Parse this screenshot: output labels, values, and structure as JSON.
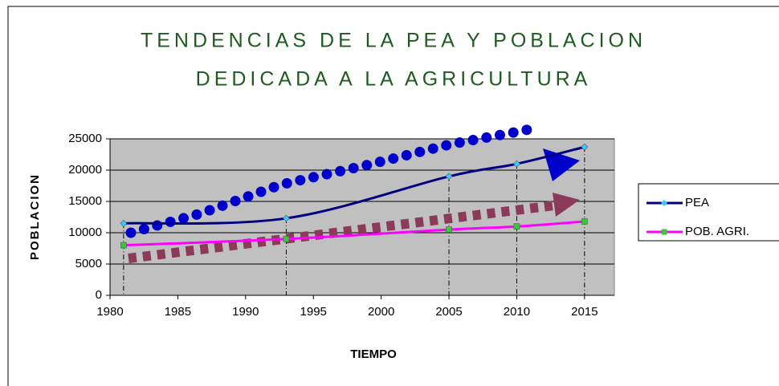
{
  "chart_data": {
    "type": "line",
    "title_lines": [
      "TENDENCIAS DE LA PEA Y POBLACION",
      "DEDICADA A LA AGRICULTURA"
    ],
    "x_label": "TIEMPO",
    "y_label": "POBLACION",
    "x": [
      1981,
      1993,
      2005,
      2010,
      2015
    ],
    "series": [
      {
        "name": "PEA",
        "color": "#000080",
        "marker_color": "#33ccff",
        "values": [
          11500,
          12300,
          19000,
          21000,
          23700
        ]
      },
      {
        "name": "POB. AGRI.",
        "color": "#ff00ff",
        "marker_color": "#33cc33",
        "values": [
          8000,
          9000,
          10500,
          11000,
          11800
        ]
      }
    ],
    "xlim": [
      1980,
      2017.2
    ],
    "xticks": [
      1980,
      1985,
      1990,
      1995,
      2000,
      2005,
      2010,
      2015
    ],
    "ylim": [
      0,
      25000
    ],
    "yticks": [
      0,
      5000,
      10000,
      15000,
      20000,
      25000
    ],
    "grid": true,
    "legend": "right",
    "smooth": true
  }
}
